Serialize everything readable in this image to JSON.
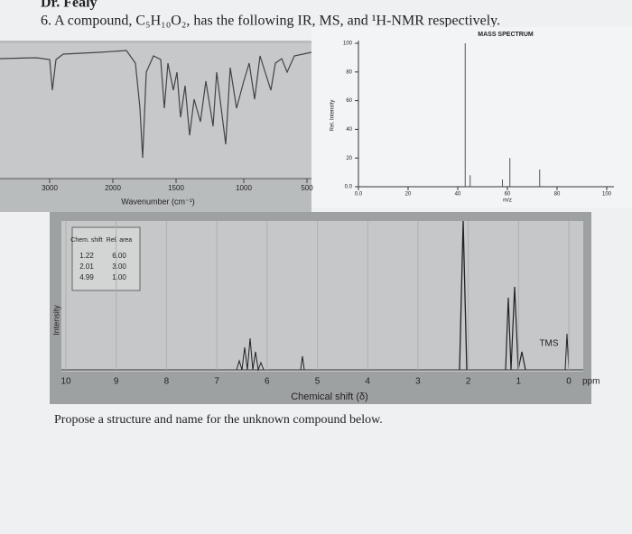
{
  "header": {
    "instructor": "Dr. Fealy",
    "question": "6. A compound, C₅H₁₀O₂, has the following IR, MS, and ¹H-NMR respectively."
  },
  "ir": {
    "xticks": [
      3000,
      2000,
      1500,
      1000,
      500
    ],
    "x_label": "Wavenumber (cm⁻¹)"
  },
  "ms": {
    "title": "MASS SPECTRUM",
    "y_label": "Rel. Intensity",
    "x_label": "m/z",
    "ylim": [
      0,
      100
    ],
    "yticks": [
      100,
      80,
      60,
      40,
      20,
      {
        "value": 0,
        "label": "0.0"
      }
    ],
    "xlim": [
      0,
      100
    ],
    "xticks": [
      {
        "value": 0,
        "label": "0.0"
      },
      20,
      40,
      60,
      80,
      100
    ],
    "peaks": {
      "x": [
        43,
        45,
        58,
        61,
        73
      ],
      "values": [
        100,
        8,
        5,
        20,
        12
      ]
    }
  },
  "nmr": {
    "table": {
      "headers": [
        "Chem. shift",
        "Rel. area"
      ],
      "rows": [
        [
          "1.22",
          "6.00"
        ],
        [
          "2.01",
          "3.00"
        ],
        [
          "4.99",
          "1.00"
        ]
      ]
    },
    "xticks": [
      10,
      9,
      8,
      7,
      6,
      5,
      4,
      3,
      2,
      1,
      0
    ],
    "unit": "ppm",
    "x_label": "Chemical shift (δ)",
    "y_label": "Intensity",
    "reference": "TMS"
  },
  "prompt": "Propose a structure and name for the unknown compound below."
}
